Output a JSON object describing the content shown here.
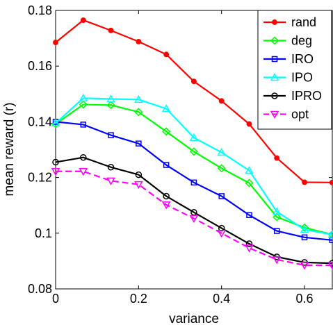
{
  "chart_data": {
    "type": "line",
    "xlabel": "variance",
    "ylabel": "mean reward (r)",
    "xlim": [
      0,
      0.667
    ],
    "ylim": [
      0.08,
      0.18
    ],
    "x_ticks": [
      0,
      0.2,
      0.4,
      0.6
    ],
    "x_tick_labels": [
      "0",
      "0.2",
      "0.4",
      "0.6"
    ],
    "y_ticks": [
      0.08,
      0.1,
      0.12,
      0.14,
      0.16,
      0.18
    ],
    "y_tick_labels": [
      "0.08",
      "0.1",
      "0.12",
      "0.14",
      "0.16",
      "0.18"
    ],
    "grid": false,
    "legend_position": "top-right",
    "x": [
      0,
      0.0667,
      0.1333,
      0.2,
      0.2667,
      0.3333,
      0.4,
      0.4667,
      0.5333,
      0.6,
      0.6667
    ],
    "series": [
      {
        "name": "rand",
        "color": "#ff0000",
        "marker": "dot",
        "dash": false,
        "values": [
          0.1685,
          0.1765,
          0.1728,
          0.1688,
          0.1642,
          0.1545,
          0.1475,
          0.1392,
          0.127,
          0.1183,
          0.1182
        ]
      },
      {
        "name": "deg",
        "color": "#00ff00",
        "marker": "diamond",
        "dash": false,
        "values": [
          0.1392,
          0.1462,
          0.146,
          0.1435,
          0.1365,
          0.1293,
          0.1233,
          0.118,
          0.1058,
          0.102,
          0.0995
        ]
      },
      {
        "name": "IRO",
        "color": "#0000ff",
        "marker": "square",
        "dash": false,
        "values": [
          0.14,
          0.139,
          0.1352,
          0.1322,
          0.1245,
          0.1182,
          0.1133,
          0.1065,
          0.1008,
          0.0985,
          0.0975
        ]
      },
      {
        "name": "IPO",
        "color": "#00ffff",
        "marker": "triangle-up",
        "dash": false,
        "values": [
          0.1395,
          0.1485,
          0.1482,
          0.148,
          0.1447,
          0.1343,
          0.129,
          0.1225,
          0.1077,
          0.1013,
          0.0995
        ]
      },
      {
        "name": "IPRO",
        "color": "#000000",
        "marker": "circle",
        "dash": false,
        "values": [
          0.1255,
          0.1272,
          0.1237,
          0.121,
          0.1133,
          0.1075,
          0.1018,
          0.0962,
          0.0915,
          0.0895,
          0.0892
        ]
      },
      {
        "name": "opt",
        "color": "#ff00ff",
        "marker": "triangle-down",
        "dash": true,
        "values": [
          0.1222,
          0.1222,
          0.1188,
          0.1175,
          0.1102,
          0.1053,
          0.1,
          0.0947,
          0.0905,
          0.0885,
          0.0885
        ]
      }
    ]
  }
}
